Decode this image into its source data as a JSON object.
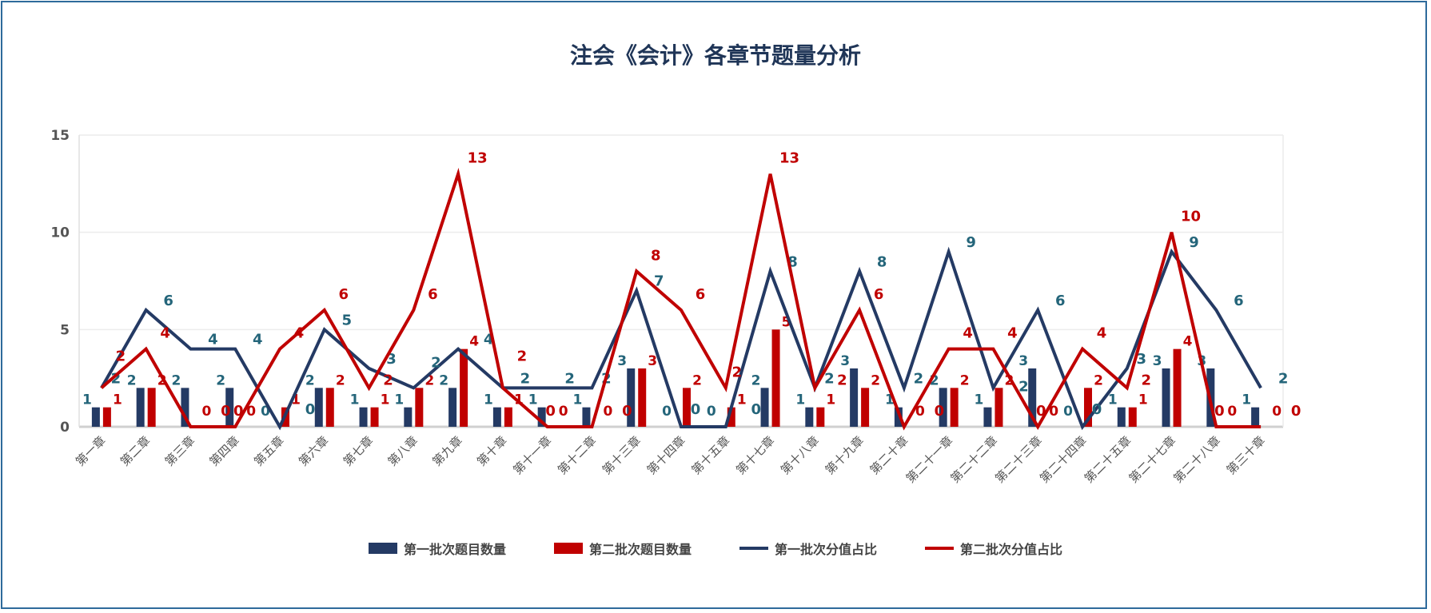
{
  "chart_data": {
    "type": "bar+line",
    "title": "注会《会计》各章节题量分析",
    "categories": [
      "第一章",
      "第二章",
      "第三章",
      "第四章",
      "第五章",
      "第六章",
      "第七章",
      "第八章",
      "第九章",
      "第十章",
      "第十一章",
      "第十二章",
      "第十三章",
      "第十四章",
      "第十五章",
      "第十七章",
      "第十八章",
      "第十九章",
      "第二十章",
      "第二十一章",
      "第二十二章",
      "第二十三章",
      "第二十四章",
      "第二十五章",
      "第二十七章",
      "第二十八章",
      "第三十章"
    ],
    "ylim": [
      0,
      15
    ],
    "yticks": [
      0,
      5,
      10,
      15
    ],
    "grid": true,
    "legend_position": "bottom",
    "series": [
      {
        "name": "第一批次题目数量",
        "kind": "bar",
        "color": "#243a64",
        "values": [
          1,
          2,
          2,
          2,
          0,
          2,
          1,
          1,
          2,
          1,
          1,
          1,
          3,
          0,
          0,
          2,
          1,
          3,
          1,
          2,
          1,
          3,
          0,
          1,
          3,
          3,
          1
        ]
      },
      {
        "name": "第二批次题目数量",
        "kind": "bar",
        "color": "#c00000",
        "values": [
          1,
          2,
          0,
          0,
          1,
          2,
          1,
          2,
          4,
          1,
          0,
          0,
          3,
          2,
          1,
          5,
          1,
          2,
          0,
          2,
          2,
          0,
          2,
          1,
          4,
          0,
          0
        ]
      },
      {
        "name": "第一批次分值占比",
        "kind": "line",
        "color": "#243a64",
        "values": [
          2,
          6,
          4,
          4,
          0,
          5,
          3,
          2,
          4,
          2,
          2,
          2,
          7,
          0,
          0,
          8,
          2,
          8,
          2,
          9,
          2,
          6,
          0,
          3,
          9,
          6,
          2
        ]
      },
      {
        "name": "第二批次分值占比",
        "kind": "line",
        "color": "#c00000",
        "values": [
          2,
          4,
          0,
          0,
          4,
          6,
          2,
          6,
          13,
          2,
          0,
          0,
          8,
          6,
          2,
          13,
          2,
          6,
          0,
          4,
          4,
          0,
          4,
          2,
          10,
          0,
          0
        ]
      }
    ]
  }
}
